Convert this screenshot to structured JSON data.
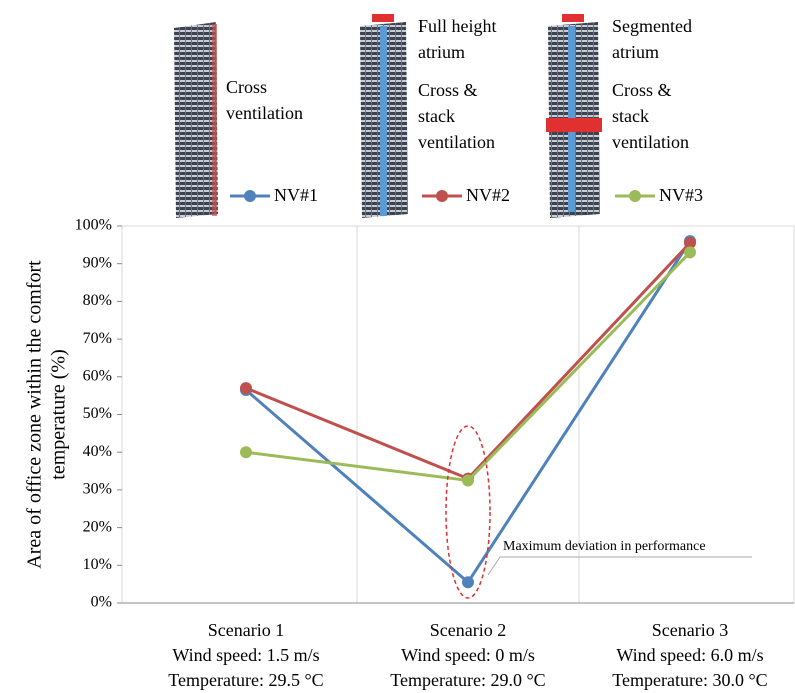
{
  "chart_data": {
    "type": "line",
    "ylabel": [
      "Area of office zone within the comfort",
      "temperature (%)"
    ],
    "categories": [
      [
        "Scenario 1",
        "Wind speed: 1.5 m/s",
        "Temperature: 29.5 °C"
      ],
      [
        "Scenario 2",
        "Wind speed: 0 m/s",
        "Temperature: 29.0 °C"
      ],
      [
        "Scenario 3",
        "Wind speed: 6.0 m/s",
        "Temperature: 30.0 °C"
      ]
    ],
    "series": [
      {
        "name": "NV#1",
        "color": "#4f81bd",
        "values": [
          56.5,
          5.5,
          96
        ]
      },
      {
        "name": "NV#2",
        "color": "#c0504d",
        "values": [
          57,
          33,
          95.5
        ]
      },
      {
        "name": "NV#3",
        "color": "#9bbb59",
        "values": [
          40,
          32.5,
          93
        ]
      }
    ],
    "ylim": [
      0,
      100
    ],
    "yticks": [
      {
        "value": 0,
        "label": "0%"
      },
      {
        "value": 10,
        "label": "10%"
      },
      {
        "value": 20,
        "label": "20%"
      },
      {
        "value": 30,
        "label": "30%"
      },
      {
        "value": 40,
        "label": "40%"
      },
      {
        "value": 50,
        "label": "50%"
      },
      {
        "value": 60,
        "label": "60%"
      },
      {
        "value": 70,
        "label": "70%"
      },
      {
        "value": 80,
        "label": "80%"
      },
      {
        "value": 90,
        "label": "90%"
      },
      {
        "value": 100,
        "label": "100%"
      }
    ],
    "grid": true,
    "annotation": "Maximum deviation in performance",
    "illustrations": [
      {
        "ventilation": [
          "Cross",
          "ventilation"
        ]
      },
      {
        "atrium": [
          "Full height",
          "atrium"
        ],
        "ventilation": [
          "Cross &",
          "stack",
          "ventilation"
        ]
      },
      {
        "atrium": [
          "Segmented",
          "atrium"
        ],
        "ventilation": [
          "Cross &",
          "stack",
          "ventilation"
        ]
      }
    ]
  }
}
